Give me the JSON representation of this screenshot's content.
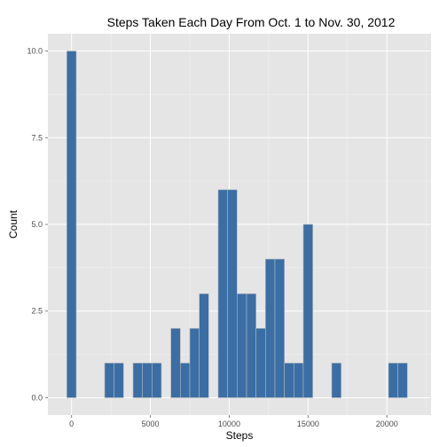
{
  "chart_data": {
    "type": "bar",
    "title": "Steps Taken Each Day From Oct. 1 to Nov. 30, 2012",
    "xlabel": "Steps",
    "ylabel": "Count",
    "xlim": [
      -1500,
      22800
    ],
    "ylim": [
      -0.5,
      10.5
    ],
    "binwidth": 600,
    "bin_starts": [
      -300,
      300,
      900,
      1500,
      2100,
      2700,
      3300,
      3900,
      4500,
      5100,
      5700,
      6300,
      6900,
      7500,
      8100,
      8700,
      9300,
      9900,
      10500,
      11100,
      11700,
      12300,
      12900,
      13500,
      14100,
      14700,
      15300,
      15900,
      16500,
      17100,
      17700,
      18300,
      18900,
      19500,
      20100,
      20700,
      21300
    ],
    "counts": [
      10,
      0,
      0,
      0,
      1,
      1,
      0,
      1,
      1,
      1,
      0,
      2,
      1,
      2,
      3,
      0,
      6,
      6,
      3,
      3,
      2,
      4,
      4,
      1,
      1,
      5,
      0,
      0,
      1,
      0,
      0,
      0,
      0,
      0,
      1,
      1,
      0
    ],
    "x_ticks": [
      0,
      5000,
      10000,
      15000,
      20000
    ],
    "y_ticks": [
      0,
      2.5,
      5,
      7.5,
      10
    ],
    "x_tick_labels": [
      "0",
      "5000",
      "10000",
      "15000",
      "20000"
    ],
    "y_tick_labels": [
      "0.0",
      "2.5",
      "5.0",
      "7.5",
      "10.0"
    ],
    "grid": true,
    "colors": {
      "panel": "#e5e5e5",
      "bar_fill": "#3a6ea5",
      "bar_outline": "#b8b8b8",
      "grid_major": "#ffffff",
      "grid_minor": "#f2f2f2"
    }
  }
}
